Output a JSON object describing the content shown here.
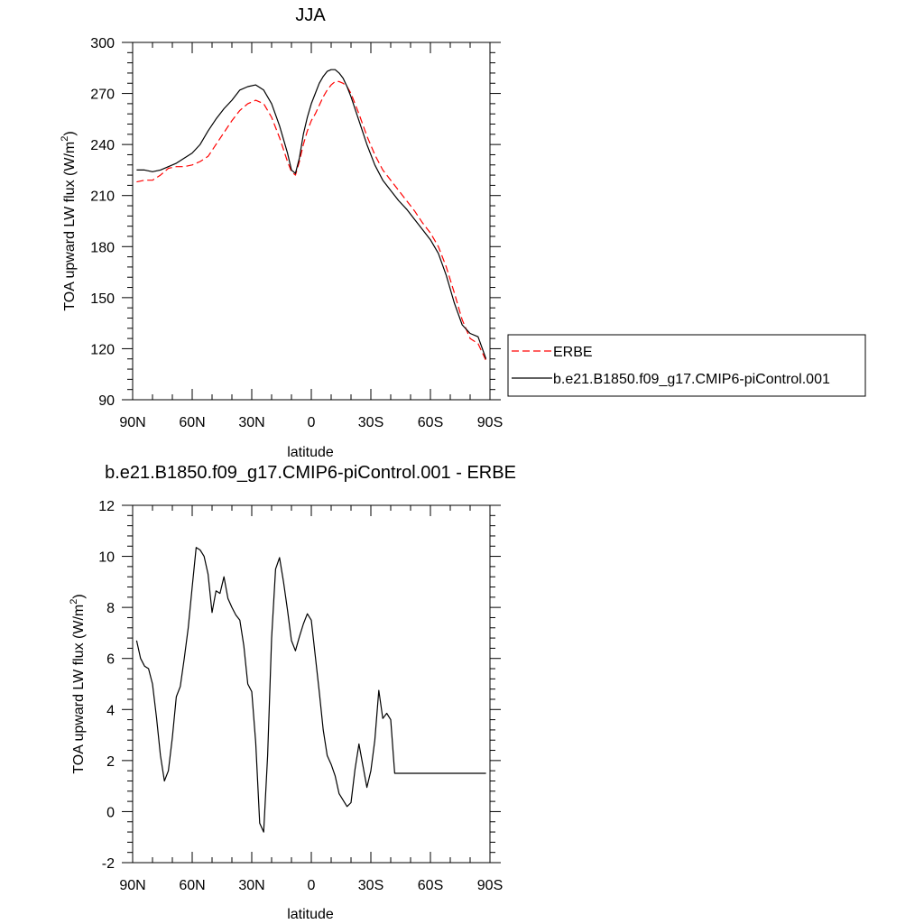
{
  "chart_data": [
    {
      "type": "line",
      "title": "JJA",
      "xlabel": "latitude",
      "ylabel": "TOA upward LW flux (W/m",
      "ylabel_sup": "2",
      "ylabel_close": ")",
      "xlim": [
        90,
        -90
      ],
      "ylim": [
        90,
        300
      ],
      "xticks": [
        90,
        60,
        30,
        0,
        -30,
        -60,
        -90
      ],
      "xtick_labels": [
        "90N",
        "60N",
        "30N",
        "0",
        "30S",
        "60S",
        "90S"
      ],
      "yticks": [
        90,
        120,
        150,
        180,
        210,
        240,
        270,
        300
      ],
      "ytick_labels": [
        "90",
        "120",
        "150",
        "180",
        "210",
        "240",
        "270",
        "300"
      ],
      "grid": false,
      "legend_position": "right",
      "series": [
        {
          "name": "ERBE",
          "color": "#ff0000",
          "dash": "dashed",
          "x": [
            88,
            84,
            80,
            76,
            72,
            68,
            64,
            60,
            56,
            52,
            48,
            44,
            40,
            36,
            32,
            28,
            24,
            20,
            16,
            12,
            10,
            8,
            6,
            4,
            2,
            0,
            -2,
            -4,
            -6,
            -8,
            -10,
            -12,
            -14,
            -16,
            -18,
            -20,
            -24,
            -28,
            -32,
            -36,
            -40,
            -44,
            -48,
            -52,
            -56,
            -60,
            -64,
            -68,
            -72,
            -76,
            -80,
            -84,
            -88
          ],
          "values": [
            218,
            219,
            219,
            222,
            226,
            227,
            227,
            228,
            230,
            233,
            240,
            247,
            254,
            260,
            264,
            266,
            264,
            256,
            244,
            230,
            224,
            222,
            230,
            240,
            248,
            254,
            258,
            263,
            268,
            272,
            275,
            277,
            277,
            276,
            274,
            270,
            258,
            245,
            234,
            225,
            219,
            213,
            207,
            201,
            194,
            188,
            180,
            168,
            153,
            137,
            126,
            123,
            113
          ]
        },
        {
          "name": "b.e21.B1850.f09_g17.CMIP6-piControl.001",
          "color": "#000000",
          "dash": "solid",
          "x": [
            88,
            84,
            80,
            76,
            72,
            68,
            64,
            60,
            56,
            52,
            48,
            44,
            40,
            36,
            32,
            28,
            24,
            20,
            16,
            12,
            10,
            8,
            6,
            4,
            2,
            0,
            -2,
            -4,
            -6,
            -8,
            -10,
            -12,
            -14,
            -16,
            -18,
            -20,
            -24,
            -28,
            -32,
            -36,
            -40,
            -44,
            -48,
            -52,
            -56,
            -60,
            -64,
            -68,
            -72,
            -76,
            -80,
            -84,
            -88
          ],
          "values": [
            225,
            225,
            224,
            225,
            227,
            229,
            232,
            235,
            240,
            248,
            255,
            261,
            266,
            272,
            274,
            275,
            272,
            264,
            251,
            235,
            225,
            223,
            232,
            246,
            256,
            264,
            270,
            276,
            280,
            283,
            284,
            284,
            282,
            279,
            274,
            268,
            254,
            240,
            228,
            219,
            213,
            207,
            202,
            196,
            190,
            184,
            176,
            163,
            147,
            134,
            129,
            127,
            114
          ]
        }
      ]
    },
    {
      "type": "line",
      "title": "b.e21.B1850.f09_g17.CMIP6-piControl.001 - ERBE",
      "xlabel": "latitude",
      "ylabel": "TOA upward LW flux (W/m",
      "ylabel_sup": "2",
      "ylabel_close": ")",
      "xlim": [
        90,
        -90
      ],
      "ylim": [
        -2,
        12
      ],
      "xticks": [
        90,
        60,
        30,
        0,
        -30,
        -60,
        -90
      ],
      "xtick_labels": [
        "90N",
        "60N",
        "30N",
        "0",
        "30S",
        "60S",
        "90S"
      ],
      "yticks": [
        -2,
        0,
        2,
        4,
        6,
        8,
        10,
        12
      ],
      "ytick_labels": [
        "-2",
        "0",
        "2",
        "4",
        "6",
        "8",
        "10",
        "12"
      ],
      "grid": false,
      "series": [
        {
          "color": "#000000",
          "dash": "solid",
          "x": [
            88,
            86,
            84,
            82,
            80,
            78,
            76,
            74,
            72,
            70,
            68,
            66,
            64,
            62,
            60,
            58,
            56,
            54,
            52,
            50,
            48,
            46,
            44,
            42,
            40,
            38,
            36,
            34,
            32,
            30,
            28,
            26,
            24,
            22,
            20,
            18,
            16,
            14,
            12,
            10,
            8,
            6,
            4,
            2,
            0,
            -2,
            -4,
            -6,
            -8,
            -10,
            -12,
            -14,
            -16,
            -18,
            -20,
            -22,
            -24,
            -26,
            -28,
            -30,
            -32,
            -34,
            -36,
            -38,
            -40,
            -42,
            -44,
            -46,
            -48,
            -50,
            -52,
            -54,
            -56,
            -58,
            -60,
            -62,
            -64,
            -66,
            -68,
            -70,
            -72,
            -74,
            -76,
            -78,
            -80,
            -82,
            -84,
            -86,
            -88
          ],
          "values": [
            6.7,
            6.0,
            5.7,
            5.6,
            5.0,
            3.7,
            2.2,
            1.2,
            1.6,
            2.9,
            4.5,
            4.9,
            6.0,
            7.2,
            8.8,
            10.35,
            10.25,
            10.0,
            9.3,
            7.8,
            8.65,
            8.55,
            9.2,
            8.35,
            8.0,
            7.7,
            7.5,
            6.5,
            5.0,
            4.7,
            2.7,
            -0.45,
            -0.8,
            2.2,
            6.8,
            9.5,
            9.95,
            9.0,
            7.9,
            6.7,
            6.3,
            6.85,
            7.35,
            7.75,
            7.5,
            6.1,
            4.7,
            3.2,
            2.2,
            1.85,
            1.4,
            0.7,
            0.45,
            0.2,
            0.35,
            1.65,
            2.65,
            1.8,
            0.95,
            1.6,
            2.8,
            4.75,
            3.65,
            3.85,
            3.6,
            1.5,
            1.5,
            1.5,
            1.5,
            1.5,
            1.5,
            1.5,
            1.5,
            1.5,
            1.5,
            1.5,
            1.5,
            1.5,
            1.5,
            1.5,
            1.5,
            1.5,
            1.5,
            1.5,
            1.5,
            1.5,
            1.5,
            1.5,
            1.5
          ]
        }
      ]
    }
  ]
}
